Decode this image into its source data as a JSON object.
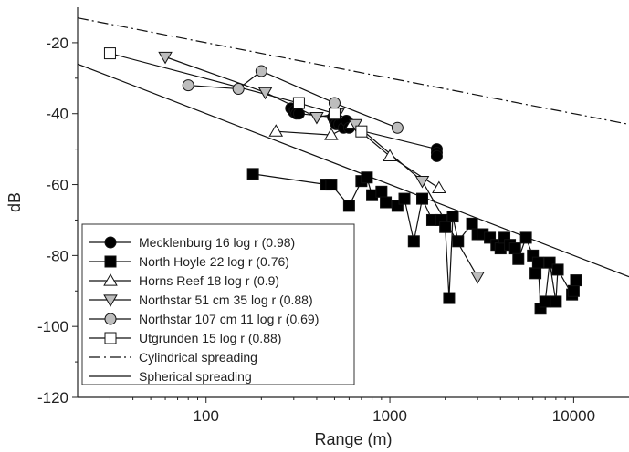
{
  "chart_data": {
    "type": "line",
    "xlabel": "Range (m)",
    "ylabel": "dB",
    "xscale": "log",
    "xlim": [
      20,
      20000
    ],
    "ylim": [
      -120,
      -10
    ],
    "xticks": [
      100,
      1000,
      10000
    ],
    "xtick_labels": [
      "100",
      "1000",
      "10000"
    ],
    "yticks": [
      -120,
      -100,
      -80,
      -60,
      -40,
      -20
    ],
    "ytick_labels": [
      "-120",
      "-100",
      "-80",
      "-60",
      "-40",
      "-20"
    ],
    "grid": false,
    "legend_position": "bottom-left",
    "series": [
      {
        "name": "Mecklenburg 16 log r (0.98)",
        "marker": "circle",
        "fill": "#000000",
        "line": "solid",
        "points": [
          [
            290,
            -38.5
          ],
          [
            300,
            -39.5
          ],
          [
            305,
            -39
          ],
          [
            310,
            -40
          ],
          [
            320,
            -40
          ],
          [
            490,
            -41
          ],
          [
            500,
            -42
          ],
          [
            510,
            -43
          ],
          [
            530,
            -43
          ],
          [
            560,
            -44
          ],
          [
            580,
            -42
          ],
          [
            600,
            -44
          ],
          [
            1800,
            -50
          ],
          [
            1800,
            -51
          ],
          [
            1800,
            -52
          ]
        ]
      },
      {
        "name": "North Hoyle 22 log r (0.76)",
        "marker": "square",
        "fill": "#000000",
        "line": "solid",
        "points": [
          [
            180,
            -57
          ],
          [
            450,
            -60
          ],
          [
            480,
            -60
          ],
          [
            600,
            -66
          ],
          [
            700,
            -59
          ],
          [
            750,
            -58
          ],
          [
            800,
            -63
          ],
          [
            900,
            -62
          ],
          [
            950,
            -65
          ],
          [
            1100,
            -66
          ],
          [
            1200,
            -64
          ],
          [
            1350,
            -76
          ],
          [
            1500,
            -64
          ],
          [
            1700,
            -70
          ],
          [
            1900,
            -70
          ],
          [
            2000,
            -72
          ],
          [
            2100,
            -92
          ],
          [
            2200,
            -69
          ],
          [
            2350,
            -76
          ],
          [
            2800,
            -71
          ],
          [
            3000,
            -74
          ],
          [
            3200,
            -74
          ],
          [
            3500,
            -75
          ],
          [
            3800,
            -77
          ],
          [
            4000,
            -78
          ],
          [
            4200,
            -75
          ],
          [
            4500,
            -77
          ],
          [
            4800,
            -78
          ],
          [
            5000,
            -81
          ],
          [
            5500,
            -75
          ],
          [
            6000,
            -80
          ],
          [
            6200,
            -85
          ],
          [
            6400,
            -82
          ],
          [
            6600,
            -95
          ],
          [
            7000,
            -93
          ],
          [
            7400,
            -82
          ],
          [
            8000,
            -93
          ],
          [
            8200,
            -84
          ],
          [
            9800,
            -91
          ],
          [
            10000,
            -90
          ],
          [
            10300,
            -87
          ]
        ]
      },
      {
        "name": "Horns Reef 18 log r (0.9)",
        "marker": "triangle-up",
        "fill": "#ffffff",
        "line": "solid",
        "points": [
          [
            240,
            -45
          ],
          [
            480,
            -46
          ],
          [
            620,
            -43
          ],
          [
            1000,
            -52
          ],
          [
            1850,
            -61
          ]
        ]
      },
      {
        "name": "Northstar 51 cm 35 log r (0.88)",
        "marker": "triangle-down",
        "fill": "#bdbdbd",
        "line": "solid",
        "points": [
          [
            60,
            -24
          ],
          [
            210,
            -34
          ],
          [
            400,
            -41
          ],
          [
            520,
            -40
          ],
          [
            650,
            -43
          ],
          [
            1500,
            -59
          ],
          [
            3000,
            -86
          ]
        ]
      },
      {
        "name": "Northstar 107 cm 11 log r (0.69)",
        "marker": "circle",
        "fill": "#bdbdbd",
        "line": "solid",
        "points": [
          [
            80,
            -32
          ],
          [
            150,
            -33
          ],
          [
            200,
            -28
          ],
          [
            500,
            -37
          ],
          [
            1100,
            -44
          ]
        ]
      },
      {
        "name": "Utgrunden 15 log r (0.88)",
        "marker": "square",
        "fill": "#ffffff",
        "line": "solid",
        "points": [
          [
            30,
            -23
          ],
          [
            320,
            -37
          ],
          [
            500,
            -40
          ],
          [
            700,
            -45
          ]
        ]
      },
      {
        "name": "Cylindrical spreading",
        "marker": "none",
        "line": "dashdot",
        "points": [
          [
            20,
            -13
          ],
          [
            20000,
            -43
          ]
        ]
      },
      {
        "name": "Spherical spreading",
        "marker": "none",
        "line": "solid",
        "points": [
          [
            20,
            -26
          ],
          [
            20000,
            -86
          ]
        ]
      }
    ]
  }
}
